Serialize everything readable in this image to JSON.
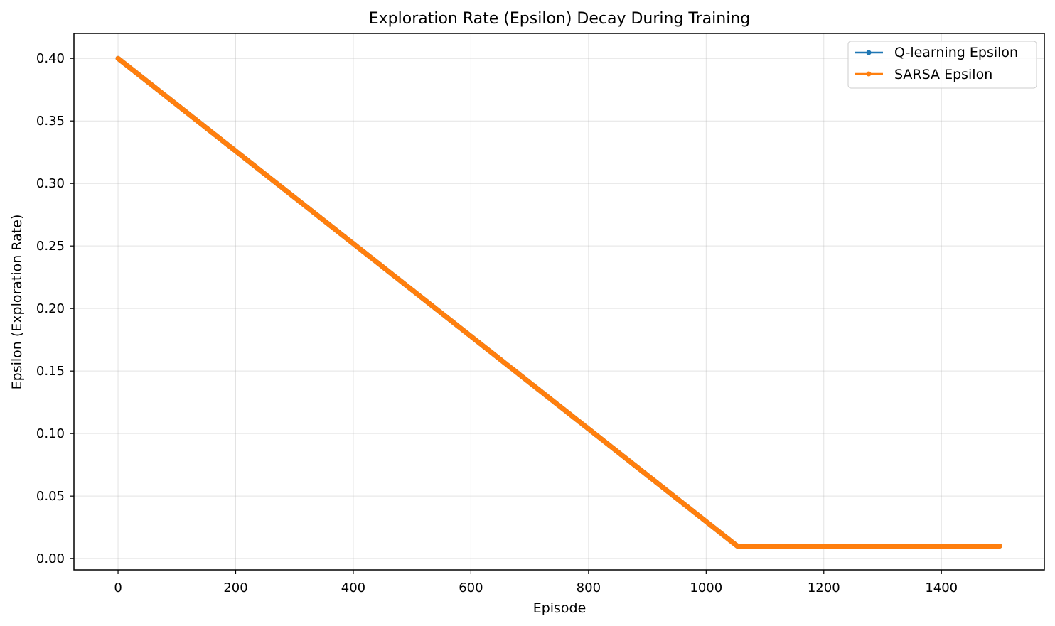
{
  "chart_data": {
    "type": "line",
    "title": "Exploration Rate (Epsilon) Decay During Training",
    "xlabel": "Episode",
    "ylabel": "Epsilon (Exploration Rate)",
    "xlim": [
      -75,
      1575
    ],
    "ylim": [
      -0.009,
      0.42
    ],
    "x_ticks": [
      0,
      200,
      400,
      600,
      800,
      1000,
      1200,
      1400
    ],
    "y_ticks": [
      0.0,
      0.05,
      0.1,
      0.15,
      0.2,
      0.25,
      0.3,
      0.35,
      0.4
    ],
    "y_tick_labels": [
      "0.00",
      "0.05",
      "0.10",
      "0.15",
      "0.20",
      "0.25",
      "0.30",
      "0.35",
      "0.40"
    ],
    "grid": true,
    "legend_position": "top-right",
    "series": [
      {
        "name": "Q-learning Epsilon",
        "color": "#1f77b4",
        "points": [
          [
            0,
            0.4
          ],
          [
            1053,
            0.01
          ],
          [
            1499,
            0.01
          ]
        ]
      },
      {
        "name": "SARSA Epsilon",
        "color": "#ff7f0e",
        "points": [
          [
            0,
            0.4
          ],
          [
            1053,
            0.01
          ],
          [
            1499,
            0.01
          ]
        ]
      }
    ]
  }
}
